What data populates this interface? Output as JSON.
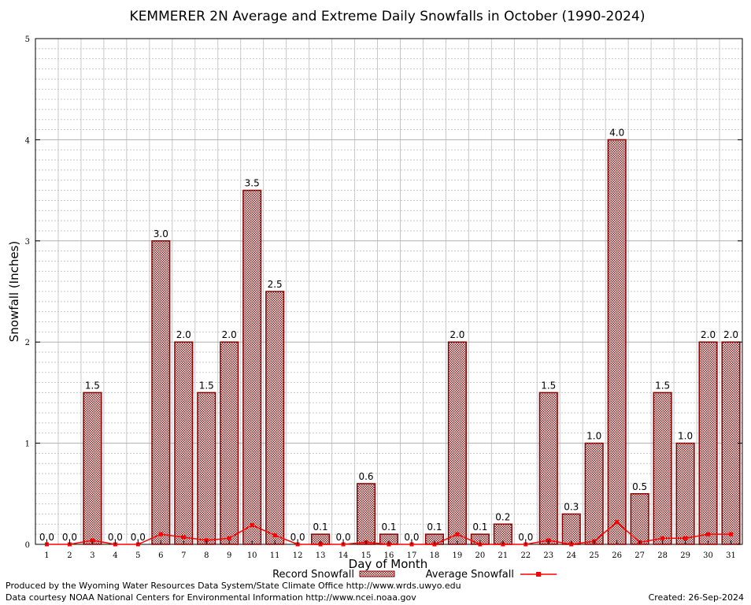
{
  "chart_data": {
    "type": "bar",
    "title": "KEMMERER 2N Average and Extreme Daily Snowfalls in October (1990-2024)",
    "xlabel": "Day of Month",
    "ylabel": "Snowfall (Inches)",
    "ylim": [
      0,
      5
    ],
    "yticks": [
      "0",
      "1",
      "2",
      "3",
      "4",
      "5"
    ],
    "grid": true,
    "categories": [
      "1",
      "2",
      "3",
      "4",
      "5",
      "6",
      "7",
      "8",
      "9",
      "10",
      "11",
      "12",
      "13",
      "14",
      "15",
      "16",
      "17",
      "18",
      "19",
      "20",
      "21",
      "22",
      "23",
      "24",
      "25",
      "26",
      "27",
      "28",
      "29",
      "30",
      "31"
    ],
    "series": [
      {
        "name": "Record Snowfall",
        "kind": "bar",
        "color": "#8b0000",
        "values": [
          0.0,
          0.0,
          1.5,
          0.0,
          0.0,
          3.0,
          2.0,
          1.5,
          2.0,
          3.5,
          2.5,
          0.0,
          0.1,
          0.0,
          0.6,
          0.1,
          0.0,
          0.1,
          2.0,
          0.1,
          0.2,
          0.0,
          1.5,
          0.3,
          1.0,
          4.0,
          0.5,
          1.5,
          1.0,
          2.0,
          2.0
        ],
        "labels": [
          "0.0",
          "0.0",
          "1.5",
          "0.0",
          "0.0",
          "3.0",
          "2.0",
          "1.5",
          "2.0",
          "3.5",
          "2.5",
          "0.0",
          "0.1",
          "0.0",
          "0.6",
          "0.1",
          "0.0",
          "0.1",
          "2.0",
          "0.1",
          "0.2",
          "0.0",
          "1.5",
          "0.3",
          "1.0",
          "4.0",
          "0.5",
          "1.5",
          "1.0",
          "2.0",
          "2.0"
        ]
      },
      {
        "name": "Average Snowfall",
        "kind": "line",
        "color": "#ff0000",
        "values": [
          0.0,
          0.0,
          0.04,
          0.0,
          0.0,
          0.1,
          0.07,
          0.04,
          0.06,
          0.19,
          0.09,
          0.0,
          0.0,
          0.0,
          0.02,
          0.0,
          0.0,
          0.0,
          0.1,
          0.0,
          0.0,
          0.0,
          0.04,
          0.0,
          0.03,
          0.22,
          0.02,
          0.06,
          0.06,
          0.1,
          0.1
        ]
      }
    ],
    "legend_position": "bottom"
  },
  "footer": {
    "produced_by": "Produced by the Wyoming Water Resources Data System/State Climate Office http://www.wrds.uwyo.edu",
    "courtesy": "Data courtesy NOAA National Centers for Environmental Information http://www.ncei.noaa.gov",
    "created": "Created:  26-Sep-2024"
  }
}
